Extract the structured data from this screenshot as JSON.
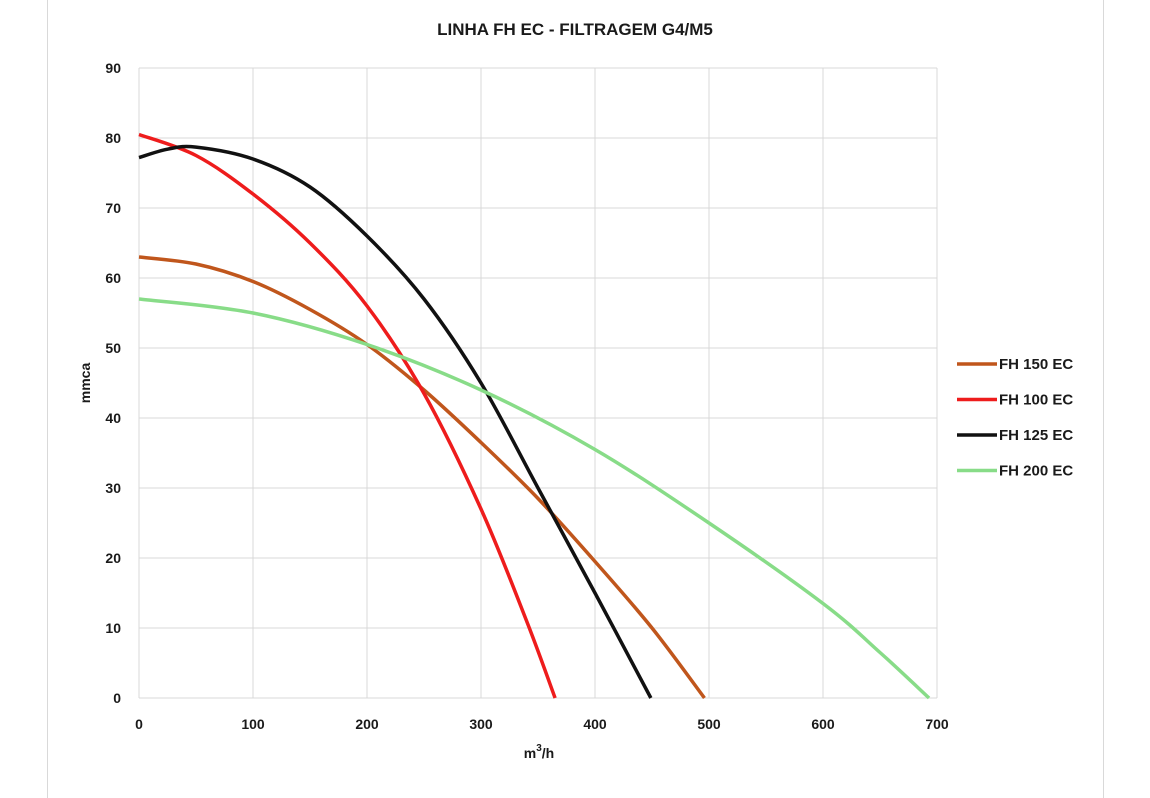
{
  "chart_data": {
    "type": "line",
    "title": "LINHA FH EC - FILTRAGEM G4/M5",
    "xlabel_base": "m",
    "xlabel_sup": "3",
    "xlabel_tail": "/h",
    "ylabel": "mmca",
    "xlim": [
      0,
      700
    ],
    "ylim": [
      0,
      90
    ],
    "xticks": [
      0,
      100,
      200,
      300,
      400,
      500,
      600,
      700
    ],
    "yticks": [
      0,
      10,
      20,
      30,
      40,
      50,
      60,
      70,
      80,
      90
    ],
    "grid": true,
    "legend_position": "right",
    "series": [
      {
        "name": "FH 150 EC",
        "color": "#c0561c",
        "x": [
          0,
          50,
          100,
          150,
          200,
          250,
          300,
          350,
          400,
          450,
          496
        ],
        "y": [
          63,
          62,
          59.5,
          55.5,
          50.5,
          44,
          36.5,
          28.5,
          19.5,
          10,
          0
        ]
      },
      {
        "name": "FH 100 EC",
        "color": "#ee1c1c",
        "x": [
          0,
          50,
          100,
          150,
          200,
          250,
          300,
          340,
          365
        ],
        "y": [
          80.5,
          77.5,
          72,
          65,
          56,
          43.5,
          27,
          11,
          0
        ]
      },
      {
        "name": "FH 125 EC",
        "color": "#111111",
        "x": [
          0,
          25,
          50,
          100,
          150,
          200,
          250,
          300,
          350,
          400,
          449
        ],
        "y": [
          77.2,
          78.4,
          78.7,
          77,
          73,
          66,
          57,
          45,
          30,
          15,
          0
        ]
      },
      {
        "name": "FH 200 EC",
        "color": "#88dc88",
        "x": [
          0,
          100,
          200,
          300,
          400,
          500,
          600,
          650,
          693
        ],
        "y": [
          57,
          55,
          50.5,
          44,
          35.5,
          25,
          13.5,
          6.5,
          0
        ]
      }
    ]
  }
}
